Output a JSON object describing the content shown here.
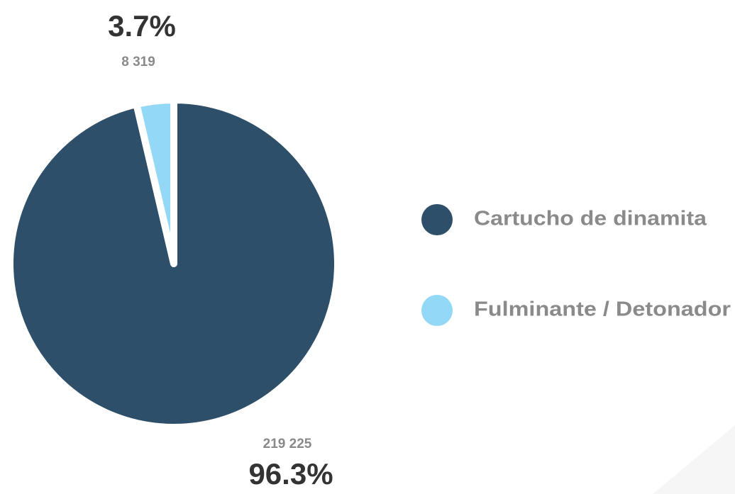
{
  "chart_data": {
    "type": "pie",
    "categories": [
      "Cartucho de dinamita",
      "Fulminante / Detonador"
    ],
    "values": [
      219225,
      8319
    ],
    "value_labels": [
      "219 225",
      "8 319"
    ],
    "percentages": [
      96.3,
      3.7
    ],
    "percentage_labels": [
      "96.3%",
      "3.7%"
    ],
    "colors": [
      "#2e4f6a",
      "#93d9f7"
    ],
    "legend": "right"
  }
}
